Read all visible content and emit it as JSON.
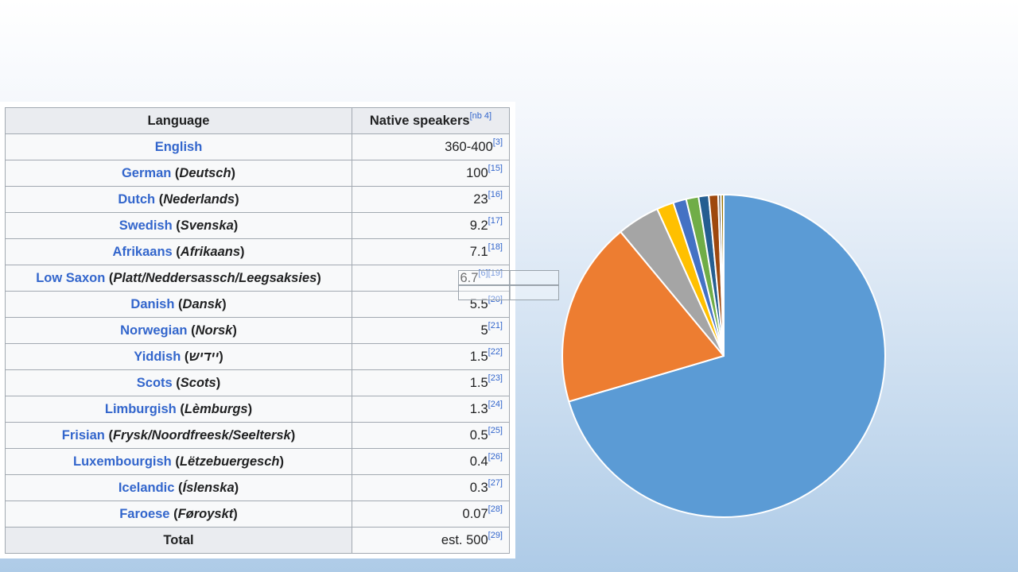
{
  "table": {
    "header_language": "Language",
    "header_speakers": "Native speakers",
    "header_speakers_ref": "[nb 4]",
    "rows": [
      {
        "name": "English",
        "native": "",
        "value": "360-400",
        "ref": "[3]"
      },
      {
        "name": "German",
        "native": "Deutsch",
        "value": "100",
        "ref": "[15]"
      },
      {
        "name": "Dutch",
        "native": "Nederlands",
        "value": "23",
        "ref": "[16]"
      },
      {
        "name": "Swedish",
        "native": "Svenska",
        "value": "9.2",
        "ref": "[17]"
      },
      {
        "name": "Afrikaans",
        "native": "Afrikaans",
        "value": "7.1",
        "ref": "[18]"
      },
      {
        "name": "Low Saxon",
        "native": "Platt/Neddersassch/Leegsaksies",
        "value": "6.7",
        "ref": "[6][19]"
      },
      {
        "name": "Danish",
        "native": "Dansk",
        "value": "5.5",
        "ref": "[20]"
      },
      {
        "name": "Norwegian",
        "native": "Norsk",
        "value": "5",
        "ref": "[21]"
      },
      {
        "name": "Yiddish",
        "native": "יידיש",
        "value": "1.5",
        "ref": "[22]"
      },
      {
        "name": "Scots",
        "native": "Scots",
        "value": "1.5",
        "ref": "[23]"
      },
      {
        "name": "Limburgish",
        "native": "Lèmburgs",
        "value": "1.3",
        "ref": "[24]"
      },
      {
        "name": "Frisian",
        "native": "Frysk/Noordfreesk/Seeltersk",
        "value": "0.5",
        "ref": "[25]"
      },
      {
        "name": "Luxembourgish",
        "native": "Lëtzebuergesch",
        "value": "0.4",
        "ref": "[26]"
      },
      {
        "name": "Icelandic",
        "native": "Íslenska",
        "value": "0.3",
        "ref": "[27]"
      },
      {
        "name": "Faroese",
        "native": "Føroyskt",
        "value": "0.07",
        "ref": "[28]"
      }
    ],
    "total_label": "Total",
    "total_value": "est. 500",
    "total_ref": "[29]"
  },
  "chart_data": {
    "type": "pie",
    "categories": [
      "English",
      "German",
      "Dutch",
      "Swedish",
      "Afrikaans",
      "Low Saxon",
      "Danish",
      "Norwegian",
      "Yiddish",
      "Scots"
    ],
    "values": [
      380,
      100,
      23,
      9.2,
      7.1,
      6.7,
      5.5,
      5,
      1.5,
      1.5
    ],
    "colors": [
      "#5b9bd5",
      "#ed7d31",
      "#a5a5a5",
      "#ffc000",
      "#4472c4",
      "#70ad47",
      "#255e91",
      "#9e480e",
      "#636363",
      "#997300"
    ],
    "start_angle_deg": 0,
    "direction": "clockwise",
    "legend": "none",
    "title": ""
  }
}
